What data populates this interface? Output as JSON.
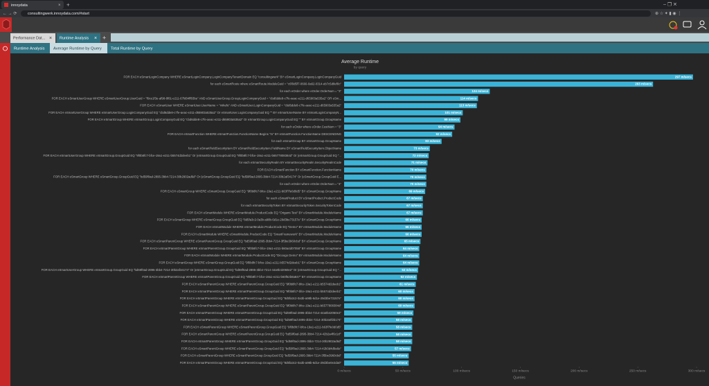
{
  "browser": {
    "tab_title": "innoydata",
    "url": "consultingwerk.innoydata.com/#start"
  },
  "app": {
    "tabs": [
      "Performance Dat...",
      "Runtime Analysis"
    ],
    "subtabs": [
      "Runtime Analysis",
      "Average Runtime by Query",
      "Total Runtime by Query"
    ]
  },
  "chart_data": {
    "type": "barh",
    "title": "Average Runtime",
    "subtitle": "by query",
    "xlabel": "Queries",
    "color": "#3bb4d8",
    "grid": false,
    "xlim": [
      0,
      300
    ],
    "xticks": [
      {
        "value": 0,
        "label": "0 m/secs"
      },
      {
        "value": 50,
        "label": "50 m/secs"
      },
      {
        "value": 100,
        "label": "100 m/secs"
      },
      {
        "value": 150,
        "label": "150 m/secs"
      },
      {
        "value": 200,
        "label": "200 m/secs"
      },
      {
        "value": 250,
        "label": "250 m/secs"
      },
      {
        "value": 300,
        "label": "300 m/secs"
      }
    ],
    "categories": [
      "FOR EACH eSmartLoginCompany WHERE eSmartLoginCompany.LoginCompanyTenantDomain EQ \"consultingwerk\" BY eSmartLoginCompany.LoginCompanyGuid",
      "for each eSmartRoute where eSmartRoute.ModuleGuid = \"c6f0d5f7-0666-0a62-0314-eb7c5d8ef0c\"",
      "for each eOrder where eOrder.OrderNum = \"3\"",
      "FOR EACH eSmartUserGroup WHERE eSmartUserGroup.UserGuid = \"f9ce1f3e-af98-8f81-e211-67fd04ff83be\" AND eSmartUserGroup.GroupLoginCompanyGuid = \"cbd6dde8-c7fe-aeac-e211-d65903a535a2\" OR eSm...",
      "FOR EACH eSmartUser WHERE eSmartUser.UserName = \"mikefe\" AND eSmartUser.LoginCompanyGuid = \"cbd6dde8-c7fe-aeac-e211-d65903a535a2\"",
      "FOR EACH eSmartUserGroup WHERE eSmartUserGroup.LoginCompanyGuid EQ \"cbd6dde8-c7fe-aeac-e211-d65903a535a2\" Or eSmartUser.LoginCompanyGuid EQ \"\" BY eSmartUserName BY eSmartLoginCompanyN...",
      "FOR EACH eSmartGroup WHERE eSmartGroup.LoginCompanyGuid EQ \"cbd6dde8-c7fe-aeac-e211-d65903a535a2\" Or eSmartGroup.LoginCompanyGuid EQ \"\" BY eSmartGroup.GroupName",
      "for each eOrder where eOrder.CustNum = \"3\"",
      "FOR EACH eSmartFunction WHERE eSmartFunction.FunctionName Begins \"m\" BY eSmartFunction.FunctionName DESCENDING",
      "for each eSmartGroup BY eSmartGroup.GroupName",
      "for each eSmartFieldSecurityItem BY eSmartFieldSecurityItem.FieldName BY eSmartFieldSecurityItem.ObjectName",
      "FOR EACH eSmartUserGroup WHERE eSmartGroup.GroupGuid EQ \"9f0b8fc7-bfce-19a1-e211-b5574d2deeb1\" Or (eSmartGroup.GroupGuid EQ \"9f0b8fc7-bfce-19a1-e211-b6577808384d\" Or (eSmartGroup.GroupGuid EQ \"...",
      "for each eSmartSecurityRealm BY eSmartSecurityRealm.SecurityRealmCode",
      "FOR EACH eSmartFunction BY eSmartFunction.FunctionName",
      "FOR EACH eSmartGroup WHERE eSmartGroup.GroupGuid EQ \"bd59f0ad-2895-3bb4-7214-30b2902ad6d\" Or (eSmartGroup.GroupGuid EQ \"bd59f0ad-2895-3bb4-7214-30b2af34174\" Or (eSmartGroup.GroupGuid E...",
      "for each eOrder where eOrder.OrderNum = \"4\"",
      "FOR EACH eSmartGroup WHERE eSmartGroup.GroupGuid EQ \"9f0b8fc7-bfce-19a1-e211-b63f7fe0d0d5\" BY eSmartGroup.GroupName",
      "for each eSmartProduct BY eSmartProduct.ProductCode",
      "for each eSmartSecurityToken BY eSmartSecurityToken.SecurityTokenCode",
      "FOR EACH eSmartModule WHERE eSmartModule.ProductCode EQ \"Origami-Test\" BY eSmartModule.ModuleName",
      "FOR EACH eSmartGroup WHERE eSmartGroup.GroupGuid EQ \"8d5fa3c2-0a3b-a98b-6d1e-29d3be73157e\" BY eSmartGroup.GroupName",
      "FOR EACH eSmartModule WHERE eSmartModule.ProductCode EQ \"Demo\" BY eSmartModule.ModuleName",
      "FOR EACH eSmartModule WHERE eSmartModule.ProductCode EQ \"SmartFramework\" BY eSmartModule.ModuleName",
      "FOR EACH eSmartParentGroup WHERE eSmartParentGroup.GroupGuid EQ \"bd59f0ad-2895-3bb4-7214-3f5be3960cbd\" BY eSmartGroup.GroupName",
      "FOR EACH eSmartParentGroup WHERE eSmartParentGroup.GroupGuid EQ \"9f0b8fc7-bfce-19a1-e211-b60a4d07058\" BY eSmartGroup.GroupName",
      "FOR EACH eSmartModule WHERE eSmartModule.ProductCode EQ \"Dicoogo Demo\" BY eSmartModule.ModuleName",
      "FOR EACH eSmartGroup WHERE eSmartGroup.GroupGuid EQ \"9f0b8fc7-bfce-19a1-e211-b5574d2deeb1\" BY eSmartGroup.GroupName",
      "FOR EACH eSmartUserGroup WHERE eSmartGroup.GroupGuid EQ \"bd59f0ad-2895-3bb4-7214-30b2af34174\" Or (eSmartGroup.GroupGuid EQ \"bd59f0ad-2895-3bb4-7214-44a0b42060e2\" Or (eSmartGroup.GroupGuid EQ \"...",
      "FOR EACH eSmartParentGroup WHERE eSmartParentGroup.GroupGuid EQ \"9f0b8fc7-bfce-19a1-e211-b60f62b8a847\" BY eSmartGroup.GroupName",
      "FOR EACH eSmartParentGroup WHERE eSmartParentGroup.GroupGuid EQ \"9f0b8fc7-bfce-19a1-e211-b5574d2deeb1\"",
      "FOR EACH eSmartParentGroup WHERE eSmartParentGroup.GroupGuid EQ \"9f0b8fc7-bfce-19a1-e211-b5574d2deeb1\"",
      "FOR EACH eSmartParentGroup WHERE eSmartParentGroup.GroupGuid EQ \"8d5fa3c2-0a3b-a98b-6d1e-29d3be73157e\"",
      "FOR EACH eSmartParentGroup WHERE eSmartParentGroup.GroupGuid EQ \"9f0b8fc7-bfce-19a1-e211-b6577808384d\"",
      "FOR EACH eSmartParentGroup WHERE eSmartParentGroup.GroupGuid EQ \"bd59f0ad-2895-3bb4-7214-44a0b42060e2\"",
      "FOR EACH eSmartParentGroup WHERE eSmartParentGroup.GroupGuid EQ \"bd59f0ad-2895-3bb4-7214-30b2a0f2b174\"",
      "FOR EACH eSmartParentGroup WHERE eSmartParentGroup.GroupGuid EQ \"9f0b8fc7-bfce-19a1-e211-b63f7fe0d0d5\"",
      "FOR EACH eSmartParentGroup WHERE eSmartParentGroup.GroupGuid EQ \"bd59f0ad-2895-3bb4-7214-42b2a4f6c1cf\"",
      "FOR EACH eSmartParentGroup WHERE eSmartParentGroup.GroupGuid EQ \"bd59f0ad-2895-3bb4-7214-30b2902ad6d\"",
      "FOR EACH eSmartParentGroup WHERE eSmartParentGroup.GroupGuid EQ \"bd59f0ad-2895-3bb4-7214-42b3d4d9a6e\"",
      "FOR EACH eSmartParentGroup WHERE eSmartParentGroup.GroupGuid EQ \"bd59f0ad-2895-3bb4-7214-3f5be3960cbd\"",
      "FOR EACH eSmartParentGroup WHERE eSmartParentGroup.GroupGuid EQ \"8d5fa3c2-0a3b-a98b-6d1e-29d3be0e2da0\""
    ],
    "values": [
      297,
      263,
      124,
      114,
      113,
      101,
      99,
      94,
      92,
      83,
      73,
      72,
      71,
      70,
      70,
      70,
      69,
      67,
      67,
      67,
      66,
      66,
      66,
      65,
      64,
      64,
      64,
      63,
      62,
      61,
      60,
      60,
      60,
      59,
      58,
      58,
      58,
      58,
      57,
      55,
      55
    ],
    "value_labels": [
      "297 m/secs",
      "263 m/secs",
      "124 m/secs",
      "114 m/secs",
      "113 m/secs",
      "101 m/secs",
      "99 m/secs",
      "94 m/secs",
      "92 m/secs",
      "83 m/secs",
      "73 m/secs",
      "72 m/secs",
      "71 m/secs",
      "70 m/secs",
      "70 m/secs",
      "70 m/secs",
      "69 m/secs",
      "67 m/secs",
      "67 m/secs",
      "67 m/secs",
      "66 m/secs",
      "66 m/secs",
      "66 m/secs",
      "65 m/secs",
      "64 m/secs",
      "64 m/secs",
      "64 m/secs",
      "63 m/secs",
      "62 m/secs",
      "61 m/secs",
      "60 m/secs",
      "60 m/secs",
      "60 m/secs",
      "59 m/secs",
      "58 m/secs",
      "58 m/secs",
      "58 m/secs",
      "58 m/secs",
      "57 m/secs",
      "55 m/secs",
      "55 m/secs"
    ]
  }
}
